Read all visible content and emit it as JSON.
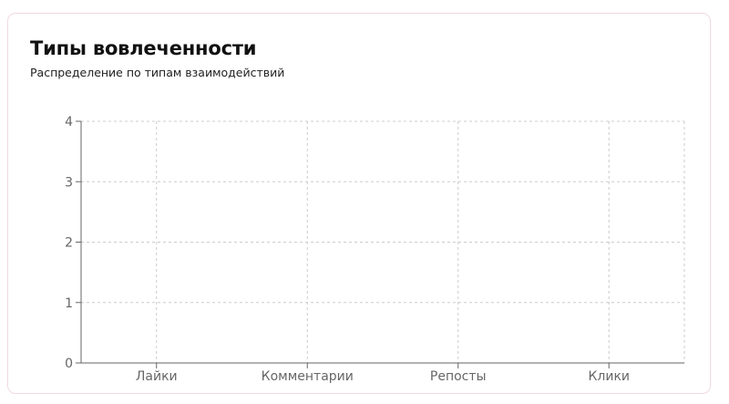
{
  "card": {
    "title": "Типы вовлеченности",
    "subtitle": "Распределение по типам взаимодействий"
  },
  "chart_data": {
    "type": "bar",
    "categories": [
      "Лайки",
      "Комментарии",
      "Репосты",
      "Клики"
    ],
    "values": [
      0,
      0,
      0,
      0
    ],
    "title": "Типы вовлеченности",
    "subtitle": "Распределение по типам взаимодействий",
    "xlabel": "",
    "ylabel": "",
    "ylim": [
      0,
      4
    ],
    "yticks": [
      0,
      1,
      2,
      3,
      4
    ],
    "grid": true,
    "legend": "none",
    "colors": {
      "axis": "#666666",
      "grid": "#cccccc",
      "border": "#f0d9df"
    }
  }
}
